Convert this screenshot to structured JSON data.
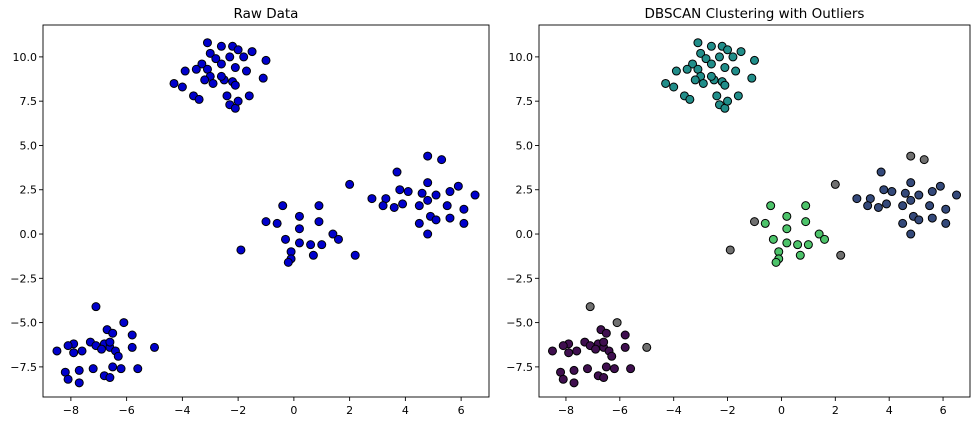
{
  "figure": {
    "background": "#ffffff"
  },
  "chart_data": [
    {
      "type": "scatter",
      "title": "Raw Data",
      "xlabel": "",
      "ylabel": "",
      "xlim": [
        -9.0,
        7.0
      ],
      "ylim": [
        -9.2,
        11.8
      ],
      "xticks": [
        -8,
        -6,
        -4,
        -2,
        0,
        2,
        4,
        6
      ],
      "xtick_labels": [
        "−8",
        "−6",
        "−4",
        "−2",
        "0",
        "2",
        "4",
        "6"
      ],
      "yticks": [
        -7.5,
        -5.0,
        -2.5,
        0.0,
        2.5,
        5.0,
        7.5,
        10.0
      ],
      "ytick_labels": [
        "−7.5",
        "−5.0",
        "−2.5",
        "0.0",
        "2.5",
        "5.0",
        "7.5",
        "10.0"
      ],
      "grid": false,
      "marker_color": "#0000cc",
      "edge_color": "#000000",
      "series": [
        {
          "points": [
            [
              -3.1,
              10.8
            ],
            [
              -2.6,
              10.6
            ],
            [
              -2.2,
              10.6
            ],
            [
              -3.0,
              10.2
            ],
            [
              -2.0,
              10.4
            ],
            [
              -1.5,
              10.3
            ],
            [
              -2.8,
              9.9
            ],
            [
              -2.3,
              10.0
            ],
            [
              -1.8,
              10.0
            ],
            [
              -1.0,
              9.8
            ],
            [
              -3.3,
              9.6
            ],
            [
              -2.6,
              9.6
            ],
            [
              -2.1,
              9.4
            ],
            [
              -3.5,
              9.3
            ],
            [
              -3.1,
              9.3
            ],
            [
              -3.9,
              9.2
            ],
            [
              -3.0,
              8.9
            ],
            [
              -1.7,
              9.2
            ],
            [
              -3.2,
              8.7
            ],
            [
              -2.9,
              8.5
            ],
            [
              -2.5,
              8.7
            ],
            [
              -2.2,
              8.6
            ],
            [
              -2.1,
              8.4
            ],
            [
              -1.1,
              8.8
            ],
            [
              -4.3,
              8.5
            ],
            [
              -4.0,
              8.3
            ],
            [
              -3.6,
              7.8
            ],
            [
              -3.4,
              7.6
            ],
            [
              -2.4,
              7.8
            ],
            [
              -2.3,
              7.3
            ],
            [
              -2.1,
              7.1
            ],
            [
              -2.0,
              7.5
            ],
            [
              -1.6,
              7.8
            ],
            [
              -2.6,
              8.9
            ],
            [
              -0.4,
              1.6
            ],
            [
              0.2,
              1.0
            ],
            [
              0.9,
              1.6
            ],
            [
              -1.0,
              0.7
            ],
            [
              -0.6,
              0.6
            ],
            [
              0.9,
              0.7
            ],
            [
              0.2,
              0.3
            ],
            [
              -0.3,
              -0.3
            ],
            [
              0.2,
              -0.5
            ],
            [
              -0.1,
              -1.0
            ],
            [
              0.6,
              -0.6
            ],
            [
              1.0,
              -0.6
            ],
            [
              1.4,
              0.0
            ],
            [
              1.6,
              -0.3
            ],
            [
              -0.1,
              -1.4
            ],
            [
              0.7,
              -1.2
            ],
            [
              -0.2,
              -1.6
            ],
            [
              -1.9,
              -0.9
            ],
            [
              2.2,
              -1.2
            ],
            [
              2.0,
              2.8
            ],
            [
              3.7,
              3.5
            ],
            [
              4.8,
              4.4
            ],
            [
              5.3,
              4.2
            ],
            [
              3.3,
              2.0
            ],
            [
              3.8,
              2.5
            ],
            [
              4.1,
              2.4
            ],
            [
              4.6,
              2.3
            ],
            [
              4.8,
              2.9
            ],
            [
              5.1,
              2.2
            ],
            [
              5.6,
              2.4
            ],
            [
              5.9,
              2.7
            ],
            [
              6.5,
              2.2
            ],
            [
              2.8,
              2.0
            ],
            [
              3.2,
              1.6
            ],
            [
              3.6,
              1.5
            ],
            [
              3.9,
              1.7
            ],
            [
              4.5,
              1.6
            ],
            [
              4.8,
              1.9
            ],
            [
              5.5,
              1.6
            ],
            [
              4.9,
              1.0
            ],
            [
              4.5,
              0.6
            ],
            [
              5.1,
              0.8
            ],
            [
              5.6,
              0.9
            ],
            [
              6.1,
              0.6
            ],
            [
              6.1,
              1.4
            ],
            [
              4.8,
              0.0
            ],
            [
              -7.1,
              -4.1
            ],
            [
              -6.1,
              -5.0
            ],
            [
              -7.3,
              -6.1
            ],
            [
              -6.7,
              -5.4
            ],
            [
              -6.5,
              -5.6
            ],
            [
              -5.8,
              -5.7
            ],
            [
              -7.9,
              -6.2
            ],
            [
              -8.1,
              -6.3
            ],
            [
              -7.9,
              -6.7
            ],
            [
              -8.5,
              -6.6
            ],
            [
              -7.6,
              -6.6
            ],
            [
              -7.1,
              -6.3
            ],
            [
              -6.8,
              -6.2
            ],
            [
              -6.6,
              -6.4
            ],
            [
              -6.4,
              -6.6
            ],
            [
              -6.3,
              -6.9
            ],
            [
              -6.6,
              -6.1
            ],
            [
              -6.9,
              -6.5
            ],
            [
              -5.0,
              -6.4
            ],
            [
              -5.8,
              -6.4
            ],
            [
              -8.2,
              -7.8
            ],
            [
              -8.1,
              -8.2
            ],
            [
              -7.7,
              -7.7
            ],
            [
              -7.7,
              -8.4
            ],
            [
              -7.2,
              -7.6
            ],
            [
              -6.8,
              -8.0
            ],
            [
              -6.6,
              -8.1
            ],
            [
              -6.5,
              -7.5
            ],
            [
              -6.2,
              -7.6
            ],
            [
              -5.6,
              -7.6
            ]
          ]
        }
      ]
    },
    {
      "type": "scatter",
      "title": "DBSCAN Clustering with Outliers",
      "xlabel": "",
      "ylabel": "",
      "xlim": [
        -9.0,
        7.0
      ],
      "ylim": [
        -9.2,
        11.8
      ],
      "xticks": [
        -8,
        -6,
        -4,
        -2,
        0,
        2,
        4,
        6
      ],
      "xtick_labels": [
        "−8",
        "−6",
        "−4",
        "−2",
        "0",
        "2",
        "4",
        "6"
      ],
      "yticks": [
        -7.5,
        -5.0,
        -2.5,
        0.0,
        2.5,
        5.0,
        7.5,
        10.0
      ],
      "ytick_labels": [
        "−7.5",
        "−5.0",
        "−2.5",
        "0.0",
        "2.5",
        "5.0",
        "7.5",
        "10.0"
      ],
      "grid": false,
      "edge_color": "#000000",
      "series": [
        {
          "color": "#3f0f4f",
          "points": [
            [
              -7.3,
              -6.1
            ],
            [
              -6.7,
              -5.4
            ],
            [
              -6.5,
              -5.6
            ],
            [
              -5.8,
              -5.7
            ],
            [
              -7.9,
              -6.2
            ],
            [
              -8.1,
              -6.3
            ],
            [
              -7.9,
              -6.7
            ],
            [
              -8.5,
              -6.6
            ],
            [
              -7.6,
              -6.6
            ],
            [
              -7.1,
              -6.3
            ],
            [
              -6.8,
              -6.2
            ],
            [
              -6.6,
              -6.4
            ],
            [
              -6.4,
              -6.6
            ],
            [
              -6.3,
              -6.9
            ],
            [
              -6.6,
              -6.1
            ],
            [
              -6.9,
              -6.5
            ],
            [
              -5.8,
              -6.4
            ],
            [
              -8.2,
              -7.8
            ],
            [
              -8.1,
              -8.2
            ],
            [
              -7.7,
              -7.7
            ],
            [
              -7.7,
              -8.4
            ],
            [
              -7.2,
              -7.6
            ],
            [
              -6.8,
              -8.0
            ],
            [
              -6.6,
              -8.1
            ],
            [
              -6.5,
              -7.5
            ],
            [
              -6.2,
              -7.6
            ],
            [
              -5.6,
              -7.6
            ]
          ]
        },
        {
          "color": "#34497a",
          "points": [
            [
              3.7,
              3.5
            ],
            [
              3.3,
              2.0
            ],
            [
              3.8,
              2.5
            ],
            [
              4.1,
              2.4
            ],
            [
              4.6,
              2.3
            ],
            [
              4.8,
              2.9
            ],
            [
              5.1,
              2.2
            ],
            [
              5.6,
              2.4
            ],
            [
              5.9,
              2.7
            ],
            [
              6.5,
              2.2
            ],
            [
              2.8,
              2.0
            ],
            [
              3.2,
              1.6
            ],
            [
              3.6,
              1.5
            ],
            [
              3.9,
              1.7
            ],
            [
              4.5,
              1.6
            ],
            [
              4.8,
              1.9
            ],
            [
              5.5,
              1.6
            ],
            [
              4.9,
              1.0
            ],
            [
              4.5,
              0.6
            ],
            [
              5.1,
              0.8
            ],
            [
              5.6,
              0.9
            ],
            [
              6.1,
              0.6
            ],
            [
              6.1,
              1.4
            ],
            [
              4.8,
              0.0
            ]
          ]
        },
        {
          "color": "#218e8a",
          "points": [
            [
              -3.1,
              10.8
            ],
            [
              -2.6,
              10.6
            ],
            [
              -2.2,
              10.6
            ],
            [
              -3.0,
              10.2
            ],
            [
              -2.0,
              10.4
            ],
            [
              -1.5,
              10.3
            ],
            [
              -2.8,
              9.9
            ],
            [
              -2.3,
              10.0
            ],
            [
              -1.8,
              10.0
            ],
            [
              -1.0,
              9.8
            ],
            [
              -3.3,
              9.6
            ],
            [
              -2.6,
              9.6
            ],
            [
              -2.1,
              9.4
            ],
            [
              -3.5,
              9.3
            ],
            [
              -3.1,
              9.3
            ],
            [
              -3.9,
              9.2
            ],
            [
              -3.0,
              8.9
            ],
            [
              -1.7,
              9.2
            ],
            [
              -3.2,
              8.7
            ],
            [
              -2.9,
              8.5
            ],
            [
              -2.5,
              8.7
            ],
            [
              -2.2,
              8.6
            ],
            [
              -2.1,
              8.4
            ],
            [
              -1.1,
              8.8
            ],
            [
              -4.3,
              8.5
            ],
            [
              -4.0,
              8.3
            ],
            [
              -3.6,
              7.8
            ],
            [
              -3.4,
              7.6
            ],
            [
              -2.4,
              7.8
            ],
            [
              -2.3,
              7.3
            ],
            [
              -2.1,
              7.1
            ],
            [
              -2.0,
              7.5
            ],
            [
              -1.6,
              7.8
            ],
            [
              -2.6,
              8.9
            ]
          ]
        },
        {
          "color": "#4dc36a",
          "points": [
            [
              -0.4,
              1.6
            ],
            [
              0.2,
              1.0
            ],
            [
              0.9,
              1.6
            ],
            [
              -0.6,
              0.6
            ],
            [
              0.9,
              0.7
            ],
            [
              0.2,
              0.3
            ],
            [
              -0.3,
              -0.3
            ],
            [
              0.2,
              -0.5
            ],
            [
              -0.1,
              -1.0
            ],
            [
              0.6,
              -0.6
            ],
            [
              1.0,
              -0.6
            ],
            [
              1.4,
              0.0
            ],
            [
              1.6,
              -0.3
            ],
            [
              -0.1,
              -1.4
            ],
            [
              0.7,
              -1.2
            ],
            [
              -0.2,
              -1.6
            ]
          ]
        },
        {
          "color": "#707070",
          "points": [
            [
              -7.1,
              -4.1
            ],
            [
              -6.1,
              -5.0
            ],
            [
              -5.0,
              -6.4
            ],
            [
              -1.0,
              0.7
            ],
            [
              -1.9,
              -0.9
            ],
            [
              2.2,
              -1.2
            ],
            [
              2.0,
              2.8
            ],
            [
              4.8,
              4.4
            ],
            [
              5.3,
              4.2
            ]
          ]
        }
      ]
    }
  ]
}
